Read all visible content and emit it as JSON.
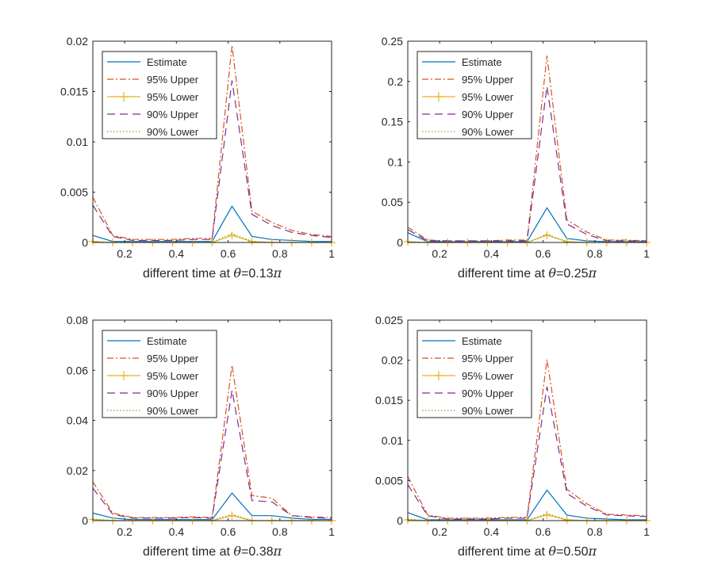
{
  "chart_data": [
    {
      "type": "line",
      "panel": "top-left",
      "xlabel_prefix": "different time at ",
      "xlabel_theta": "θ",
      "xlabel_value": "=0.13",
      "xlabel_pi": "π",
      "xlim": [
        0.077,
        1.0
      ],
      "ylim": [
        0,
        0.02
      ],
      "xticks": [
        0.2,
        0.4,
        0.6,
        0.8,
        1
      ],
      "xtick_labels": [
        "0.2",
        "0.4",
        "0.6",
        "0.8",
        "1"
      ],
      "yticks": [
        0,
        0.005,
        0.01,
        0.015,
        0.02
      ],
      "ytick_labels": [
        "0",
        "0.005",
        "0.01",
        "0.015",
        "0.02"
      ],
      "legend_position": "top-left",
      "x": [
        0.077,
        0.154,
        0.231,
        0.308,
        0.385,
        0.462,
        0.538,
        0.615,
        0.692,
        0.769,
        0.846,
        0.923,
        1.0
      ],
      "series": [
        {
          "name": "Estimate",
          "values": [
            0.0007,
            0.0001,
            0.0001,
            0.0001,
            0.0001,
            0.0001,
            0.0001,
            0.0036,
            0.0006,
            0.0003,
            0.0002,
            0.0001,
            0.0001
          ]
        },
        {
          "name": "95% Upper",
          "values": [
            0.0045,
            0.0007,
            0.0003,
            0.0003,
            0.0003,
            0.0004,
            0.0004,
            0.0196,
            0.0031,
            0.002,
            0.0012,
            0.0008,
            0.0006
          ]
        },
        {
          "name": "95% Lower",
          "values": [
            0.0001,
            0,
            0,
            0,
            0,
            0,
            0,
            0.0007,
            0.0001,
            0,
            0,
            0,
            0
          ]
        },
        {
          "name": "90% Upper",
          "values": [
            0.0037,
            0.0006,
            0.0002,
            0.0002,
            0.0002,
            0.0003,
            0.0003,
            0.0161,
            0.0028,
            0.0017,
            0.001,
            0.0007,
            0.0005
          ]
        },
        {
          "name": "90% Lower",
          "values": [
            0.0001,
            0,
            0,
            0,
            0,
            0,
            0,
            0.0009,
            0.0001,
            0,
            0,
            0,
            0
          ]
        }
      ]
    },
    {
      "type": "line",
      "panel": "top-right",
      "xlabel_prefix": "different time at ",
      "xlabel_theta": "θ",
      "xlabel_value": "=0.25",
      "xlabel_pi": "π",
      "xlim": [
        0.077,
        1.0
      ],
      "ylim": [
        0,
        0.25
      ],
      "xticks": [
        0.2,
        0.4,
        0.6,
        0.8,
        1
      ],
      "xtick_labels": [
        "0.2",
        "0.4",
        "0.6",
        "0.8",
        "1"
      ],
      "yticks": [
        0,
        0.05,
        0.1,
        0.15,
        0.2,
        0.25
      ],
      "ytick_labels": [
        "0",
        "0.05",
        "0.1",
        "0.15",
        "0.2",
        "0.25"
      ],
      "legend_position": "top-left",
      "x": [
        0.077,
        0.154,
        0.231,
        0.308,
        0.385,
        0.462,
        0.538,
        0.615,
        0.692,
        0.769,
        0.846,
        0.923,
        1.0
      ],
      "series": [
        {
          "name": "Estimate",
          "values": [
            0.012,
            0.001,
            0.001,
            0.001,
            0.001,
            0.001,
            0.001,
            0.043,
            0.005,
            0.002,
            0.001,
            0.001,
            0.001
          ]
        },
        {
          "name": "95% Upper",
          "values": [
            0.019,
            0.003,
            0.002,
            0.002,
            0.002,
            0.003,
            0.003,
            0.232,
            0.028,
            0.013,
            0.003,
            0.003,
            0.002
          ]
        },
        {
          "name": "95% Lower",
          "values": [
            0.001,
            0,
            0,
            0,
            0,
            0,
            0,
            0.009,
            0.001,
            0,
            0,
            0,
            0
          ]
        },
        {
          "name": "90% Upper",
          "values": [
            0.016,
            0.002,
            0.002,
            0.002,
            0.002,
            0.002,
            0.002,
            0.194,
            0.023,
            0.01,
            0.002,
            0.002,
            0.002
          ]
        },
        {
          "name": "90% Lower",
          "values": [
            0.001,
            0,
            0,
            0,
            0,
            0,
            0,
            0.01,
            0.001,
            0,
            0,
            0,
            0
          ]
        }
      ]
    },
    {
      "type": "line",
      "panel": "bottom-left",
      "xlabel_prefix": "different time at ",
      "xlabel_theta": "θ",
      "xlabel_value": "=0.38",
      "xlabel_pi": "π",
      "xlim": [
        0.077,
        1.0
      ],
      "ylim": [
        0,
        0.08
      ],
      "xticks": [
        0.2,
        0.4,
        0.6,
        0.8,
        1
      ],
      "xtick_labels": [
        "0.2",
        "0.4",
        "0.6",
        "0.8",
        "1"
      ],
      "yticks": [
        0,
        0.02,
        0.04,
        0.06,
        0.08
      ],
      "ytick_labels": [
        "0",
        "0.02",
        "0.04",
        "0.06",
        "0.08"
      ],
      "legend_position": "top-left",
      "x": [
        0.077,
        0.154,
        0.231,
        0.308,
        0.385,
        0.462,
        0.538,
        0.615,
        0.692,
        0.769,
        0.846,
        0.923,
        1.0
      ],
      "series": [
        {
          "name": "Estimate",
          "values": [
            0.003,
            0.001,
            0.0004,
            0.0004,
            0.0004,
            0.0004,
            0.0004,
            0.011,
            0.002,
            0.002,
            0.001,
            0.0005,
            0.0005
          ]
        },
        {
          "name": "95% Upper",
          "values": [
            0.0155,
            0.003,
            0.0012,
            0.0012,
            0.0012,
            0.0015,
            0.0012,
            0.062,
            0.01,
            0.009,
            0.002,
            0.0015,
            0.0012
          ]
        },
        {
          "name": "95% Lower",
          "values": [
            0.0005,
            0,
            0,
            0,
            0,
            0,
            0,
            0.002,
            0,
            0,
            0,
            0,
            0
          ]
        },
        {
          "name": "90% Upper",
          "values": [
            0.013,
            0.0025,
            0.001,
            0.001,
            0.001,
            0.0012,
            0.001,
            0.052,
            0.008,
            0.0075,
            0.002,
            0.0012,
            0.001
          ]
        },
        {
          "name": "90% Lower",
          "values": [
            0.0006,
            0,
            0,
            0,
            0,
            0,
            0,
            0.0025,
            0,
            0,
            0,
            0,
            0
          ]
        }
      ]
    },
    {
      "type": "line",
      "panel": "bottom-right",
      "xlabel_prefix": "different time at ",
      "xlabel_theta": "θ",
      "xlabel_value": "=0.50",
      "xlabel_pi": "π",
      "xlim": [
        0.077,
        1.0
      ],
      "ylim": [
        0,
        0.025
      ],
      "xticks": [
        0.2,
        0.4,
        0.6,
        0.8,
        1
      ],
      "xtick_labels": [
        "0.2",
        "0.4",
        "0.6",
        "0.8",
        "1"
      ],
      "yticks": [
        0,
        0.005,
        0.01,
        0.015,
        0.02,
        0.025
      ],
      "ytick_labels": [
        "0",
        "0.005",
        "0.01",
        "0.015",
        "0.02",
        "0.025"
      ],
      "legend_position": "top-left",
      "x": [
        0.077,
        0.154,
        0.231,
        0.308,
        0.385,
        0.462,
        0.538,
        0.615,
        0.692,
        0.769,
        0.846,
        0.923,
        1.0
      ],
      "series": [
        {
          "name": "Estimate",
          "values": [
            0.001,
            0.0001,
            0.0001,
            0.0001,
            0.0001,
            0.0001,
            0.0001,
            0.0038,
            0.0007,
            0.0003,
            0.0002,
            0.0001,
            0.0001
          ]
        },
        {
          "name": "95% Upper",
          "values": [
            0.0055,
            0.0007,
            0.0003,
            0.0003,
            0.0003,
            0.0004,
            0.0004,
            0.0201,
            0.0039,
            0.0021,
            0.0008,
            0.0007,
            0.0006
          ]
        },
        {
          "name": "95% Lower",
          "values": [
            0.0001,
            0,
            0,
            0,
            0,
            0,
            0,
            0.0007,
            0.0001,
            0,
            0,
            0,
            0
          ]
        },
        {
          "name": "90% Upper",
          "values": [
            0.0045,
            0.0006,
            0.0002,
            0.0002,
            0.0002,
            0.0003,
            0.0003,
            0.0167,
            0.0034,
            0.0018,
            0.0007,
            0.0006,
            0.0005
          ]
        },
        {
          "name": "90% Lower",
          "values": [
            0.0002,
            0,
            0,
            0,
            0,
            0,
            0,
            0.0009,
            0.0001,
            0,
            0,
            0,
            0
          ]
        }
      ]
    }
  ],
  "series_styles": [
    {
      "name": "Estimate",
      "color": "#0072BD",
      "dash": "",
      "marker": "none"
    },
    {
      "name": "95% Upper",
      "color": "#D95319",
      "dash": "8,3,2,3",
      "marker": "none"
    },
    {
      "name": "95% Lower",
      "color": "#EDB120",
      "dash": "",
      "marker": "plus"
    },
    {
      "name": "90% Upper",
      "color": "#7E2F8E",
      "dash": "10,6",
      "marker": "none"
    },
    {
      "name": "90% Lower",
      "color": "#77AC30",
      "dash": "1.5,2.5",
      "marker": "none"
    }
  ]
}
